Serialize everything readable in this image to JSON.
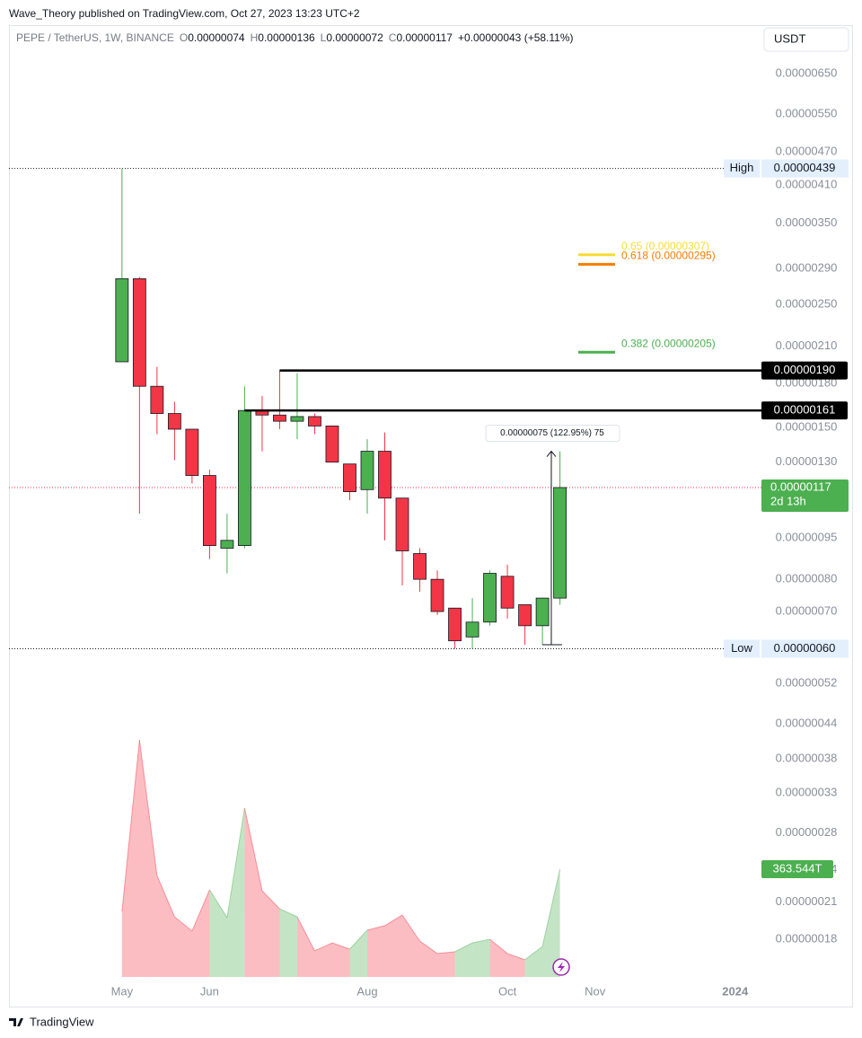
{
  "header": {
    "published": "Wave_Theory published on TradingView.com, Oct 27, 2023 13:23 UTC+2"
  },
  "chart_data": {
    "type": "candlestick",
    "title": "PEPE / TetherUS, 1W, BINANCE",
    "ohlc_labels": [
      "O",
      "H",
      "L",
      "C"
    ],
    "ohlc_values": [
      7.4e-07,
      1.36e-06,
      7.2e-07,
      1.17e-06
    ],
    "ohlc_value_labels": [
      "0.00000074",
      "0.00000136",
      "0.00000072",
      "0.00000117"
    ],
    "change_label": "+0.00000043 (+58.11%)",
    "currency": "USDT",
    "open": [
      1.97e-06,
      2.78e-06,
      1.78e-06,
      1.59e-06,
      1.49e-06,
      1.23e-06,
      9.1e-07,
      9.2e-07,
      1.61e-06,
      1.58e-06,
      1.54e-06,
      1.57e-06,
      1.51e-06,
      1.29e-06,
      1.16e-06,
      1.36e-06,
      1.12e-06,
      8.9e-07,
      8e-07,
      7.1e-07,
      6.3e-07,
      6.7e-07,
      8.1e-07,
      7.2e-07,
      6.6e-07,
      7.4e-07
    ],
    "high": [
      4.39e-06,
      2.8e-06,
      1.93e-06,
      1.67e-06,
      1.49e-06,
      1.26e-06,
      1.05e-06,
      1.78e-06,
      1.71e-06,
      1.9e-06,
      1.88e-06,
      1.59e-06,
      1.51e-06,
      1.29e-06,
      1.43e-06,
      1.47e-06,
      1.12e-06,
      9.1e-07,
      8.3e-07,
      7.1e-07,
      7.4e-07,
      8.3e-07,
      8.5e-07,
      7.2e-07,
      7.4e-07,
      1.36e-06
    ],
    "low": [
      1.97e-06,
      1.05e-06,
      1.46e-06,
      1.31e-06,
      1.19e-06,
      8.7e-07,
      8.2e-07,
      9.1e-07,
      1.36e-06,
      1.49e-06,
      1.43e-06,
      1.46e-06,
      1.3e-06,
      1.11e-06,
      1.05e-06,
      9.4e-07,
      7.8e-07,
      7.6e-07,
      6.9e-07,
      6e-07,
      6e-07,
      6.6e-07,
      6.8e-07,
      6.1e-07,
      6.1e-07,
      7.2e-07
    ],
    "close": [
      2.78e-06,
      1.78e-06,
      1.59e-06,
      1.49e-06,
      1.23e-06,
      9.2e-07,
      9.4e-07,
      1.61e-06,
      1.58e-06,
      1.54e-06,
      1.57e-06,
      1.51e-06,
      1.3e-06,
      1.15e-06,
      1.36e-06,
      1.12e-06,
      9e-07,
      8e-07,
      7e-07,
      6.2e-07,
      6.7e-07,
      8.2e-07,
      7.1e-07,
      6.6e-07,
      7.4e-07,
      1.17e-06
    ],
    "up_color": "#4caf50",
    "down_color": "#f23645",
    "volume": [
      221,
      800,
      342,
      203,
      155,
      294,
      200,
      570,
      291,
      230,
      203,
      88,
      115,
      94,
      158,
      173,
      209,
      121,
      79,
      85,
      115,
      127,
      79,
      58,
      103,
      363.544
    ],
    "volume_label": "363.544T",
    "log_scale": true,
    "xlim": [
      -6.45,
      36.5
    ],
    "xticks": [
      {
        "value": 0,
        "label": "May"
      },
      {
        "value": 5,
        "label": "Jun"
      },
      {
        "value": 14,
        "label": "Aug"
      },
      {
        "value": 22,
        "label": "Oct"
      },
      {
        "value": 27,
        "label": "Nov"
      },
      {
        "value": 35,
        "label": "2024"
      }
    ],
    "ylim": [
      1.54e-07,
      7.89e-06
    ],
    "yticks": [
      {
        "value": 6.5e-06,
        "label": "0.00000650"
      },
      {
        "value": 5.5e-06,
        "label": "0.00000550"
      },
      {
        "value": 4.7e-06,
        "label": "0.00000470"
      },
      {
        "value": 4.1e-06,
        "label": "0.00000410"
      },
      {
        "value": 3.5e-06,
        "label": "0.00000350"
      },
      {
        "value": 2.9e-06,
        "label": "0.00000290"
      },
      {
        "value": 2.5e-06,
        "label": "0.00000250"
      },
      {
        "value": 2.1e-06,
        "label": "0.00000210"
      },
      {
        "value": 1.8e-06,
        "label": "0.00000180"
      },
      {
        "value": 1.5e-06,
        "label": "0.00000150"
      },
      {
        "value": 1.3e-06,
        "label": "0.00000130"
      },
      {
        "value": 9.5e-07,
        "label": "0.00000095"
      },
      {
        "value": 8e-07,
        "label": "0.00000080"
      },
      {
        "value": 7e-07,
        "label": "0.00000070"
      },
      {
        "value": 5.2e-07,
        "label": "0.00000052"
      },
      {
        "value": 4.4e-07,
        "label": "0.00000044"
      },
      {
        "value": 3.8e-07,
        "label": "0.00000038"
      },
      {
        "value": 3.3e-07,
        "label": "0.00000033"
      },
      {
        "value": 2.8e-07,
        "label": "0.00000028"
      },
      {
        "value": 2.4e-07,
        "label": "0.00000024"
      },
      {
        "value": 2.1e-07,
        "label": "0.00000021"
      },
      {
        "value": 1.8e-07,
        "label": "0.00000018"
      }
    ],
    "high_marker": {
      "label": "High",
      "value": 4.39e-06,
      "value_label": "0.00000439"
    },
    "low_marker": {
      "label": "Low",
      "value": 6e-07,
      "value_label": "0.00000060"
    },
    "levels": [
      {
        "value": 1.9e-06,
        "label": "0.00000190"
      },
      {
        "value": 1.61e-06,
        "label": "0.00000161"
      }
    ],
    "fib": [
      {
        "value": 3.07e-06,
        "label": "0.65 (0.00000307)",
        "color": "#f7dc34"
      },
      {
        "value": 2.95e-06,
        "label": "0.618 (0.00000295)",
        "color": "#f57c00"
      },
      {
        "value": 2.05e-06,
        "label": "0.382 (0.00000205)",
        "color": "#4caf50"
      }
    ],
    "last_price": {
      "value": 1.17e-06,
      "label": "0.00000117",
      "countdown": "2d 13h"
    },
    "measure": {
      "from": 6.1e-07,
      "to": 1.36e-06,
      "label": "0.00000075 (122.95%) 75"
    }
  },
  "footer": {
    "brand": "TradingView"
  }
}
